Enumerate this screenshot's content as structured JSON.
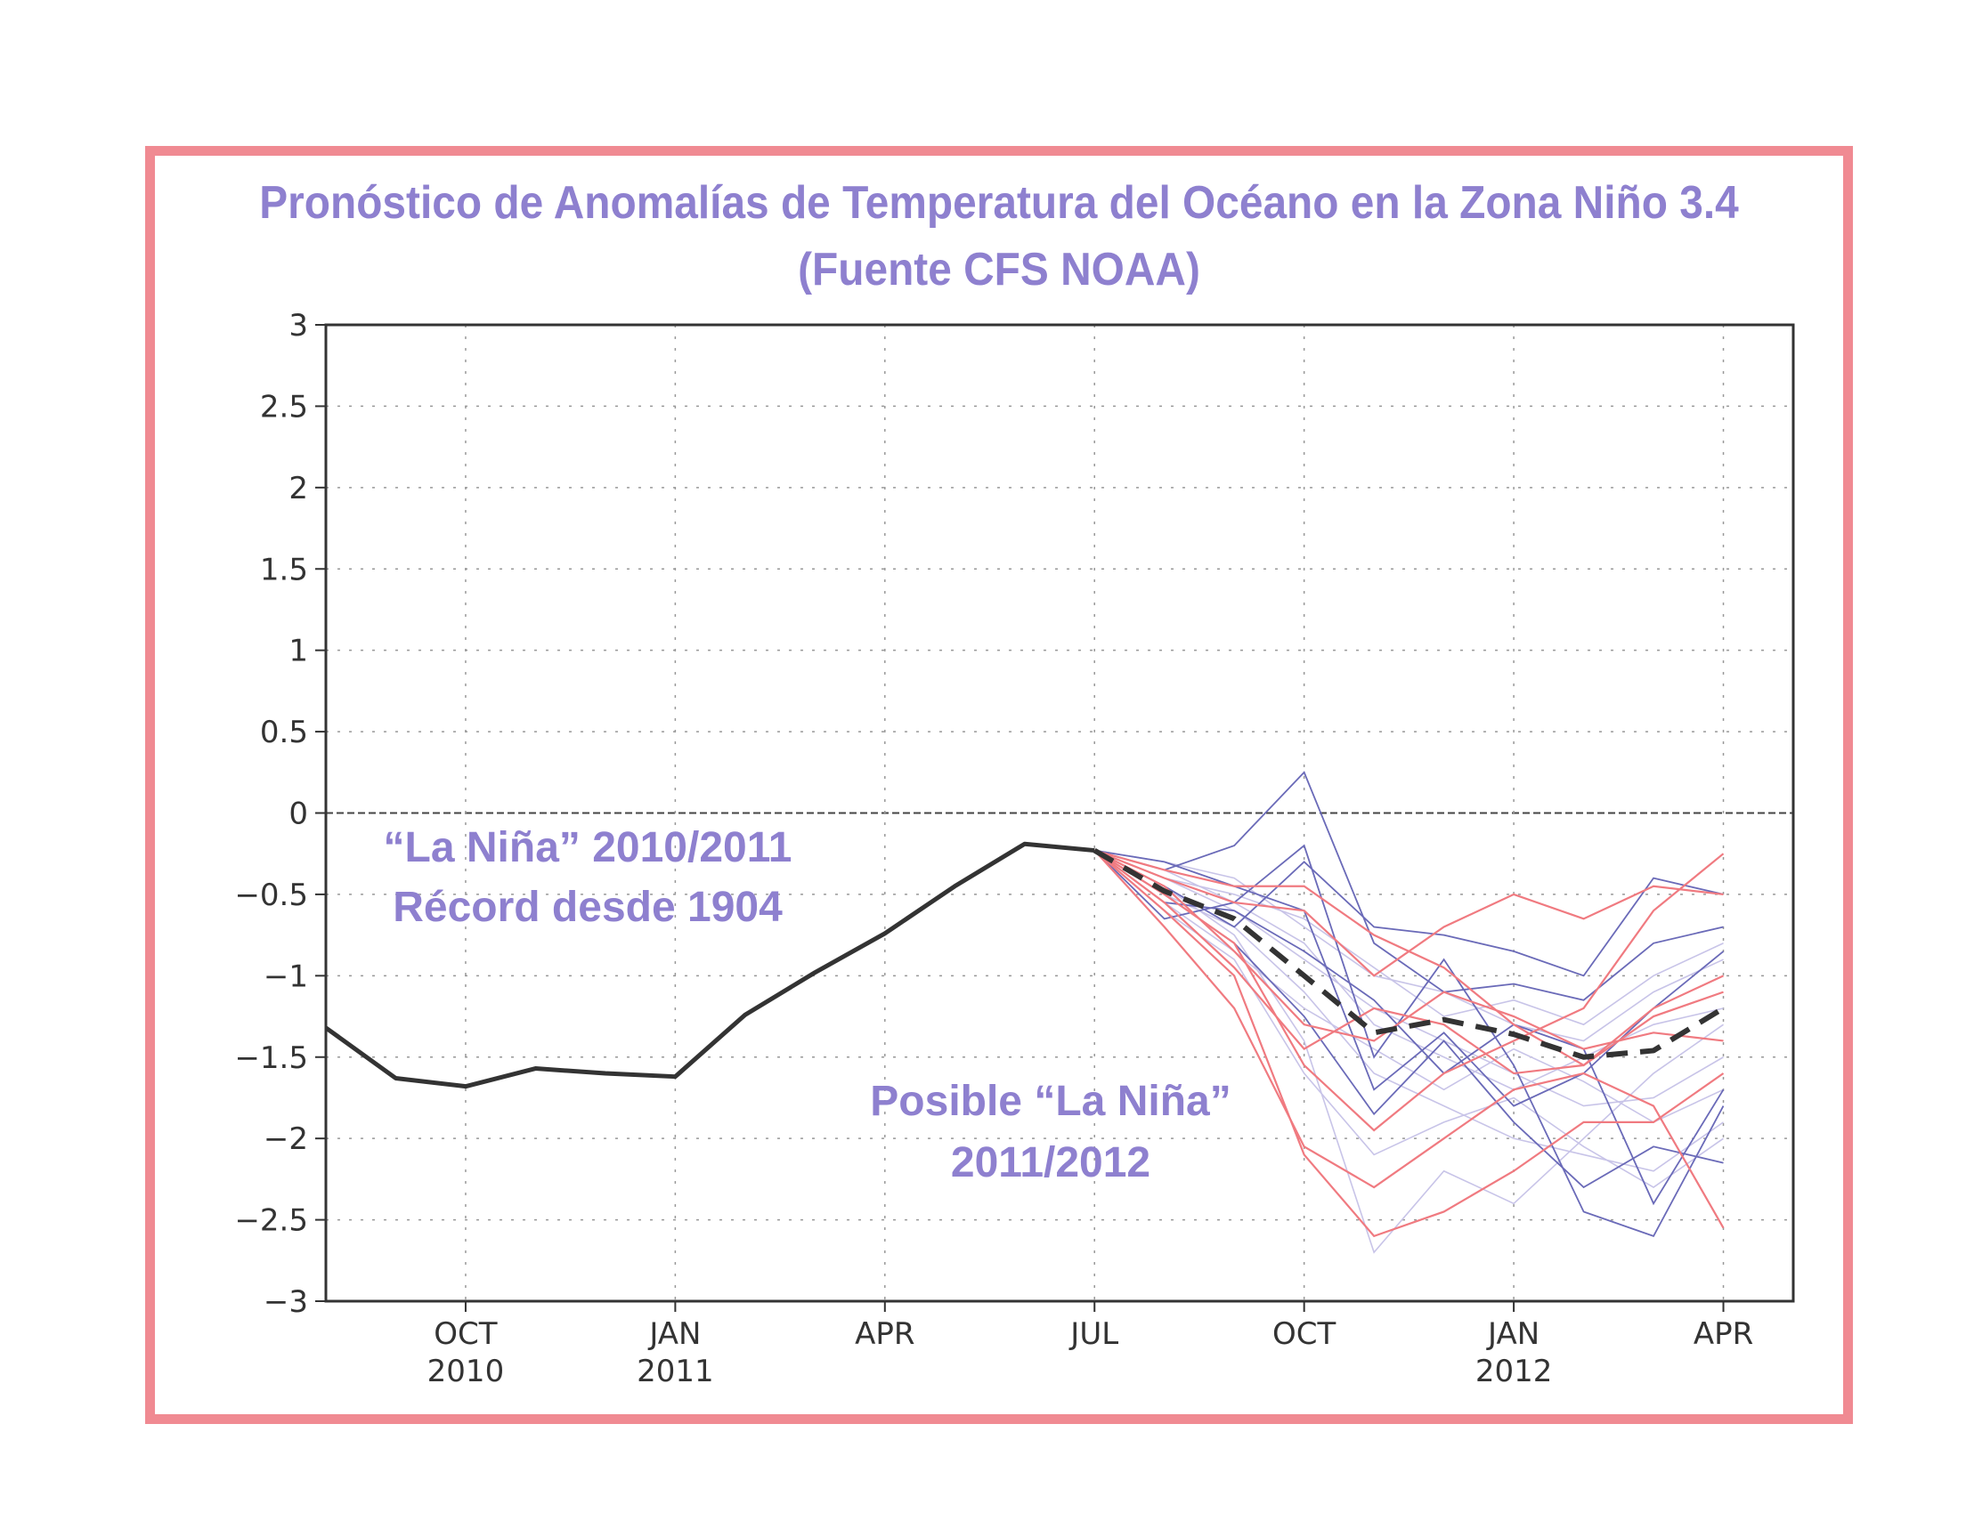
{
  "title_line1": "Pronóstico de Anomalías de Temperatura del Océano en la Zona Niño 3.4",
  "title_line2": "(Fuente CFS NOAA)",
  "annotations": {
    "nina_2010_line1": "“La Niña” 2010/2011",
    "nina_2010_line2": "Récord desde 1904",
    "nina_2011_line1": "Posible  “La Niña”",
    "nina_2011_line2": "2011/2012"
  },
  "colors": {
    "frame": "#f08a92",
    "title": "#8e80cf",
    "observed": "#333333",
    "ensemble_red": "#f07a80",
    "ensemble_blue": "#6a6ab8",
    "ensemble_light": "#c8c4e8"
  },
  "chart_data": {
    "type": "line",
    "title": "Pronóstico de Anomalías de Temperatura del Océano en la Zona Niño 3.4 (Fuente CFS NOAA)",
    "xlabel": "",
    "ylabel": "",
    "ylim": [
      -3,
      3
    ],
    "yticks": [
      "3",
      "2.5",
      "2",
      "1.5",
      "1",
      "0.5",
      "0",
      "−0.5",
      "−1",
      "−1.5",
      "−2",
      "−2.5",
      "−3"
    ],
    "xlim": [
      "2010-08",
      "2012-05"
    ],
    "xticks": [
      {
        "month": "2010-10",
        "label": "OCT",
        "year": "2010"
      },
      {
        "month": "2011-01",
        "label": "JAN",
        "year": "2011"
      },
      {
        "month": "2011-04",
        "label": "APR",
        "year": ""
      },
      {
        "month": "2011-07",
        "label": "JUL",
        "year": ""
      },
      {
        "month": "2011-10",
        "label": "OCT",
        "year": ""
      },
      {
        "month": "2012-01",
        "label": "JAN",
        "year": "2012"
      },
      {
        "month": "2012-04",
        "label": "APR",
        "year": ""
      }
    ],
    "grid": true,
    "zero_line": true,
    "observed": {
      "x": [
        "2010-09",
        "2010-10",
        "2010-11",
        "2010-12",
        "2011-01",
        "2011-02",
        "2011-03",
        "2011-04",
        "2011-05",
        "2011-06",
        "2011-07"
      ],
      "values": [
        -1.63,
        -1.68,
        -1.57,
        -1.6,
        -1.62,
        -1.24,
        -0.98,
        -0.74,
        -0.45,
        -0.19,
        -0.23
      ],
      "start_value": -1.32
    },
    "ensemble_mean": {
      "x": [
        "2011-07",
        "2011-08",
        "2011-09",
        "2011-10",
        "2011-11",
        "2011-12",
        "2012-01",
        "2012-02",
        "2012-03",
        "2012-04"
      ],
      "values": [
        -0.23,
        -0.48,
        -0.65,
        -1.0,
        -1.35,
        -1.27,
        -1.36,
        -1.5,
        -1.46,
        -1.2
      ]
    },
    "ensemble_members": {
      "x": [
        "2011-07",
        "2011-08",
        "2011-09",
        "2011-10",
        "2011-11",
        "2011-12",
        "2012-01",
        "2012-02",
        "2012-03",
        "2012-04"
      ],
      "red": [
        [
          -0.23,
          -0.5,
          -0.8,
          -1.55,
          -1.95,
          -1.6,
          -1.4,
          -1.2,
          -0.6,
          -0.25
        ],
        [
          -0.23,
          -0.7,
          -1.2,
          -2.05,
          -2.3,
          -2.0,
          -1.7,
          -1.6,
          -1.8,
          -2.55
        ],
        [
          -0.23,
          -0.45,
          -0.85,
          -1.3,
          -1.4,
          -1.1,
          -1.25,
          -1.45,
          -1.35,
          -1.4
        ],
        [
          -0.23,
          -0.6,
          -1.0,
          -2.1,
          -2.6,
          -2.45,
          -2.2,
          -1.9,
          -1.9,
          -1.6
        ],
        [
          -0.23,
          -0.4,
          -0.55,
          -0.6,
          -1.0,
          -0.7,
          -0.5,
          -0.65,
          -0.45,
          -0.5
        ],
        [
          -0.23,
          -0.55,
          -0.95,
          -1.45,
          -1.2,
          -1.3,
          -1.6,
          -1.55,
          -1.2,
          -1.0
        ],
        [
          -0.23,
          -0.35,
          -0.45,
          -0.45,
          -0.75,
          -0.95,
          -1.3,
          -1.55,
          -1.25,
          -1.1
        ]
      ],
      "blue": [
        [
          -0.23,
          -0.35,
          -0.2,
          0.25,
          -0.8,
          -1.1,
          -1.05,
          -1.15,
          -0.8,
          -0.7
        ],
        [
          -0.23,
          -0.65,
          -0.55,
          -0.2,
          -1.5,
          -0.9,
          -1.55,
          -2.45,
          -2.6,
          -1.8
        ],
        [
          -0.23,
          -0.3,
          -0.45,
          -0.6,
          -1.7,
          -1.35,
          -1.8,
          -1.6,
          -1.2,
          -0.85
        ],
        [
          -0.23,
          -0.5,
          -0.8,
          -1.25,
          -1.85,
          -1.4,
          -1.9,
          -2.3,
          -2.05,
          -2.15
        ],
        [
          -0.23,
          -0.45,
          -0.7,
          -0.3,
          -0.7,
          -0.75,
          -0.85,
          -1.0,
          -0.4,
          -0.5
        ],
        [
          -0.23,
          -0.55,
          -0.6,
          -0.85,
          -1.15,
          -1.6,
          -1.3,
          -1.45,
          -2.4,
          -1.7
        ]
      ],
      "light": [
        [
          -0.23,
          -0.4,
          -0.6,
          -0.9,
          -1.2,
          -1.4,
          -1.6,
          -1.8,
          -1.75,
          -1.5
        ],
        [
          -0.23,
          -0.5,
          -0.7,
          -1.1,
          -1.6,
          -1.8,
          -2.0,
          -2.1,
          -2.2,
          -1.9
        ],
        [
          -0.23,
          -0.3,
          -0.4,
          -0.7,
          -1.0,
          -1.1,
          -1.3,
          -1.4,
          -1.1,
          -0.9
        ],
        [
          -0.23,
          -0.45,
          -0.75,
          -1.4,
          -2.7,
          -2.2,
          -2.4,
          -2.0,
          -1.6,
          -1.3
        ],
        [
          -0.23,
          -0.35,
          -0.55,
          -0.8,
          -1.3,
          -1.5,
          -1.7,
          -1.5,
          -1.3,
          -1.2
        ],
        [
          -0.23,
          -0.55,
          -0.85,
          -1.2,
          -1.45,
          -1.7,
          -1.45,
          -1.65,
          -1.9,
          -1.7
        ],
        [
          -0.23,
          -0.4,
          -0.5,
          -0.65,
          -0.95,
          -1.25,
          -1.15,
          -1.3,
          -1.0,
          -0.8
        ],
        [
          -0.23,
          -0.6,
          -0.9,
          -1.6,
          -2.1,
          -1.9,
          -1.75,
          -2.05,
          -2.3,
          -2.0
        ]
      ]
    }
  }
}
